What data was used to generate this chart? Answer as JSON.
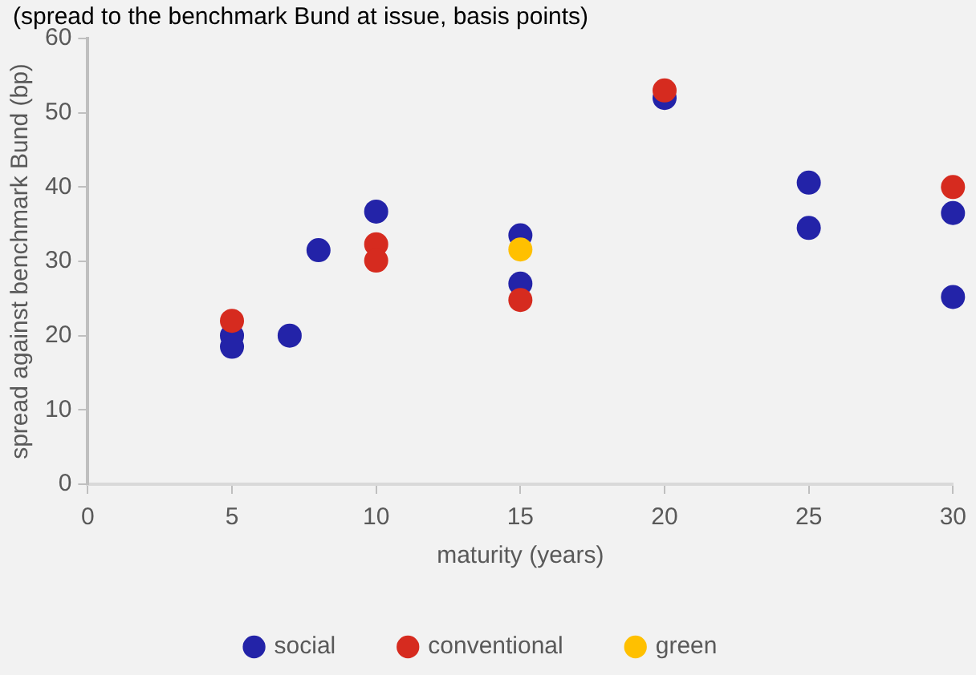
{
  "chart_data": {
    "type": "scatter",
    "title": "(spread to the benchmark Bund at issue, basis points)",
    "xlabel": "maturity (years)",
    "ylabel": "spread against benchmark Bund (bp)",
    "xlim": [
      0,
      30
    ],
    "xticks": [
      0,
      5,
      10,
      15,
      20,
      25,
      30
    ],
    "ylim": [
      0,
      60
    ],
    "yticks": [
      0,
      10,
      20,
      30,
      40,
      50,
      60
    ],
    "grid": false,
    "legend": "bottom",
    "marker": "circle",
    "series": [
      {
        "name": "social",
        "color": "#2323a8",
        "x": [
          5,
          5,
          7,
          8,
          10,
          15,
          15,
          20,
          25,
          25,
          30,
          30
        ],
        "values": [
          20,
          18.5,
          20,
          31.5,
          36.7,
          33.5,
          27,
          52,
          40.6,
          34.5,
          36.5,
          25.2
        ]
      },
      {
        "name": "conventional",
        "color": "#d62b1f",
        "x": [
          5,
          10,
          10,
          15,
          20,
          30
        ],
        "values": [
          22,
          32.3,
          30.1,
          24.8,
          53,
          40
        ]
      },
      {
        "name": "green",
        "color": "#ffc000",
        "x": [
          15
        ],
        "values": [
          31.6
        ]
      }
    ]
  }
}
